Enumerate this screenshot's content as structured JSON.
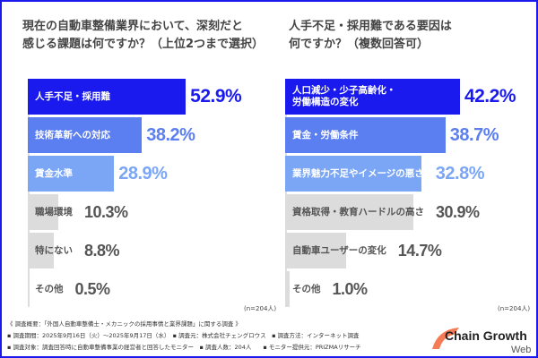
{
  "left": {
    "title": "現在の自動車整備業界において、深刻だと\n感じる課題は何ですか？（上位2つまで選択）",
    "n": "(n=204人)"
  },
  "right": {
    "title": "人手不足・採用難である要因は\n何ですか？（複数回答可）",
    "n": "(n=204人)"
  },
  "colors": {
    "rank1": "#1a1aee",
    "rank2": "#5b7ef0",
    "rank3": "#7aa6f5",
    "other": "#dcdcdc",
    "other_text": "#555555",
    "frame": "#1a1aee"
  },
  "chart_data": [
    {
      "type": "bar",
      "orientation": "horizontal",
      "title": "現在の自動車整備業界において、深刻だと感じる課題は何ですか？（上位2つまで選択）",
      "unit": "%",
      "categories": [
        "人手不足・採用難",
        "技術革新への対応",
        "賃金水準",
        "職場環境",
        "特にない",
        "その他"
      ],
      "values": [
        52.9,
        38.2,
        28.9,
        10.3,
        8.8,
        0.5
      ],
      "labels": [
        "52.9%",
        "38.2%",
        "28.9%",
        "10.3%",
        "8.8%",
        "0.5%"
      ]
    },
    {
      "type": "bar",
      "orientation": "horizontal",
      "title": "人手不足・採用難である要因は何ですか？（複数回答可）",
      "unit": "%",
      "categories": [
        "人口減少・少子高齢化・\n労働構造の変化",
        "賃金・労働条件",
        "業界魅力不足やイメージの悪さ",
        "資格取得・教育ハードルの高さ",
        "自動車ユーザーの変化",
        "その他"
      ],
      "values": [
        42.2,
        38.7,
        32.8,
        30.9,
        14.7,
        1.0
      ],
      "labels": [
        "42.2%",
        "38.7%",
        "32.8%",
        "30.9%",
        "14.7%",
        "1.0%"
      ]
    }
  ],
  "footer": {
    "line1": "《 調査概要：「外国人自動車整備士・メカニックの採用事情と業界課題」に関する調査 》",
    "line2": "▪ 調査期間：2025年9月16日（火）～2025年9月17日（水）　▪ 調査元：株式会社チェングロウス　▪ 調査方法：インターネット調査",
    "line3": "▪ 調査対象：調査回答時に自動車整備事業の経営者と回答したモニター　▪ 調査人数：204人　　▪ モニター提供元：PRIZMAリサーチ"
  },
  "logo": {
    "text": "Chain Growth",
    "sub": "Web"
  }
}
